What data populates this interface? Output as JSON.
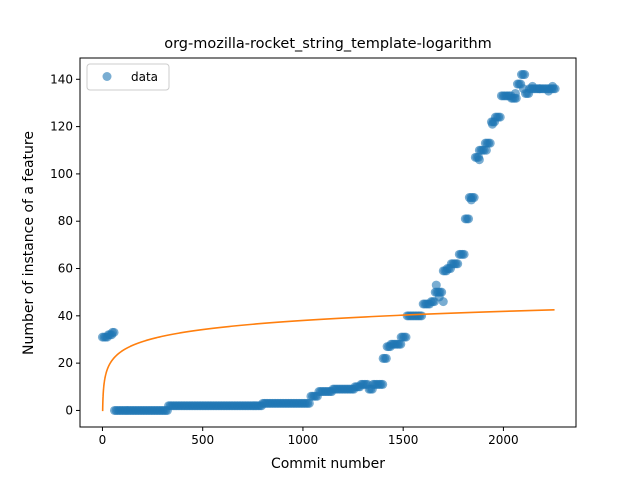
{
  "chart_data": {
    "type": "scatter",
    "title": "org-mozilla-rocket_string_template-logarithm",
    "xlabel": "Commit number",
    "ylabel": "Number of instance of a feature",
    "xlim": [
      -112,
      2362
    ],
    "ylim": [
      -7,
      149
    ],
    "xticks": [
      0,
      500,
      1000,
      1500,
      2000
    ],
    "yticks": [
      0,
      20,
      40,
      60,
      80,
      100,
      120,
      140
    ],
    "grid": false,
    "legend": {
      "position": "top-left",
      "entries": [
        "data"
      ]
    },
    "colors": {
      "data": "#1f77b4",
      "fit": "#ff7f0e"
    },
    "series": [
      {
        "name": "data",
        "kind": "scatter",
        "segments": [
          [
            0,
            30,
            31
          ],
          [
            30,
            50,
            32
          ],
          [
            50,
            60,
            33
          ],
          [
            60,
            330,
            0
          ],
          [
            330,
            800,
            2
          ],
          [
            800,
            1040,
            3
          ],
          [
            1040,
            1080,
            6
          ],
          [
            1080,
            1150,
            8
          ],
          [
            1150,
            1260,
            9
          ],
          [
            1260,
            1290,
            10
          ],
          [
            1290,
            1330,
            11
          ],
          [
            1330,
            1350,
            9
          ],
          [
            1350,
            1400,
            11
          ],
          [
            1400,
            1420,
            22
          ],
          [
            1420,
            1440,
            27
          ],
          [
            1440,
            1490,
            28
          ],
          [
            1490,
            1520,
            31
          ],
          [
            1520,
            1560,
            40
          ],
          [
            1560,
            1600,
            40
          ],
          [
            1600,
            1640,
            45
          ],
          [
            1640,
            1660,
            46
          ],
          [
            1660,
            1700,
            50
          ],
          [
            1700,
            1720,
            59
          ],
          [
            1720,
            1740,
            60
          ],
          [
            1740,
            1780,
            62
          ],
          [
            1780,
            1810,
            66
          ],
          [
            1810,
            1830,
            81
          ],
          [
            1830,
            1860,
            90
          ],
          [
            1860,
            1880,
            107
          ],
          [
            1880,
            1910,
            110
          ],
          [
            1910,
            1940,
            113
          ],
          [
            1940,
            1960,
            122
          ],
          [
            1960,
            1990,
            124
          ],
          [
            1990,
            2040,
            133
          ],
          [
            2040,
            2070,
            132
          ],
          [
            2070,
            2090,
            138
          ],
          [
            2090,
            2110,
            142
          ],
          [
            2110,
            2130,
            134
          ],
          [
            2130,
            2260,
            136
          ]
        ],
        "extra_points": [
          [
            1665,
            53
          ],
          [
            1680,
            48
          ],
          [
            1700,
            46
          ],
          [
            1840,
            89
          ],
          [
            1880,
            106
          ],
          [
            1915,
            110
          ],
          [
            1945,
            121
          ],
          [
            2060,
            134
          ],
          [
            2100,
            136
          ],
          [
            2145,
            137
          ],
          [
            2180,
            136
          ],
          [
            2225,
            135
          ],
          [
            2245,
            137
          ]
        ]
      },
      {
        "name": "",
        "kind": "line",
        "function": "a + b*ln(x)",
        "a": -0.3,
        "b": 5.55,
        "x_range": [
          1,
          2255
        ]
      }
    ]
  }
}
